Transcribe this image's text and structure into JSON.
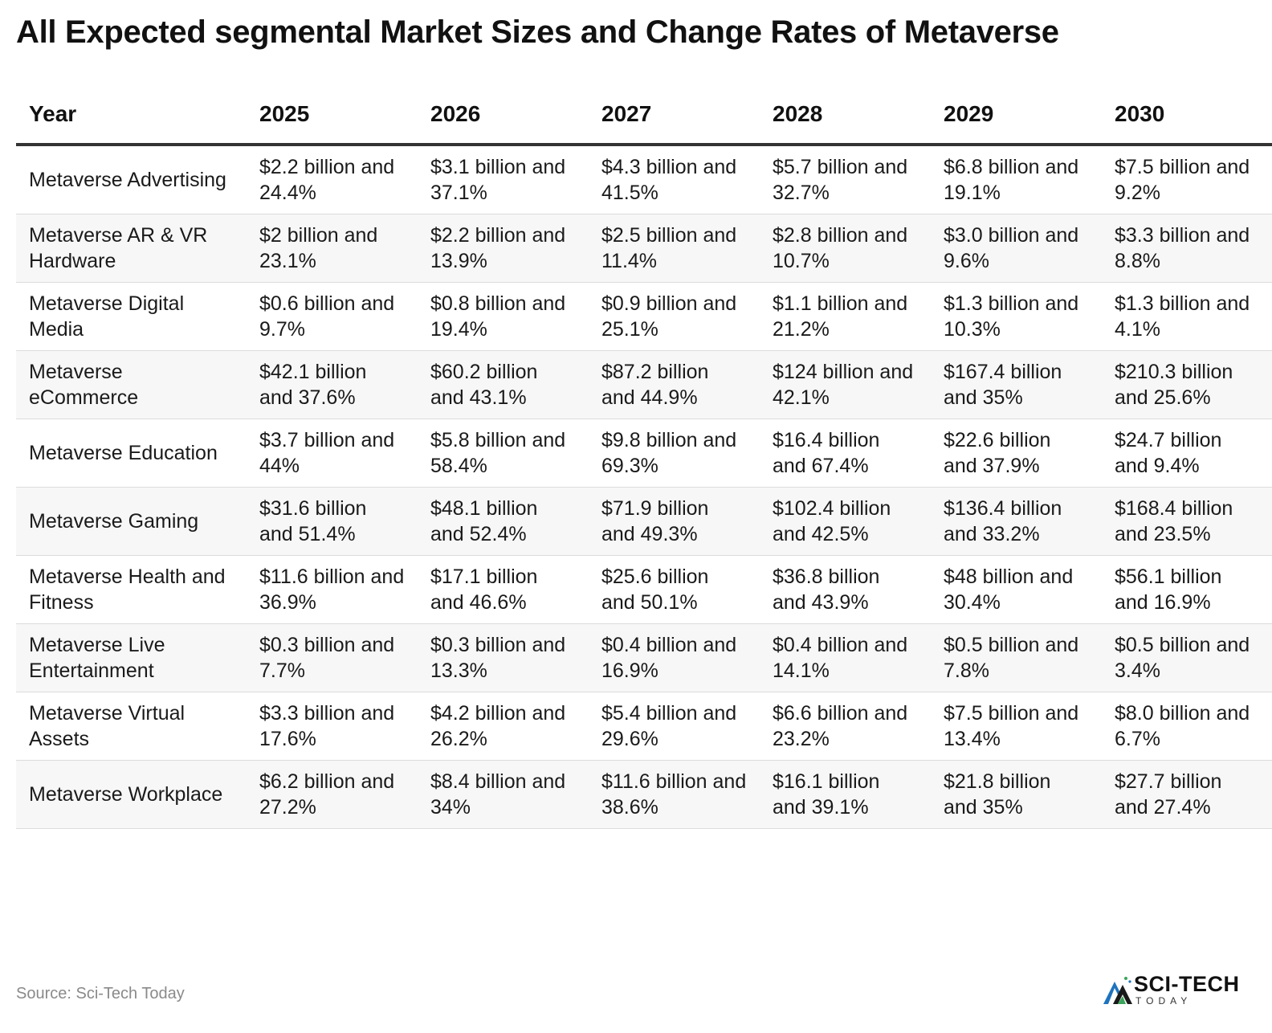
{
  "title": "All Expected segmental Market Sizes and Change Rates of Metaverse",
  "table": {
    "headers": [
      "Year",
      "2025",
      "2026",
      "2027",
      "2028",
      "2029",
      "2030"
    ],
    "rows": [
      [
        "Metaverse Advertising",
        "$2.2 billion and 24.4%",
        "$3.1 billion and 37.1%",
        "$4.3 billion and 41.5%",
        "$5.7 billion and 32.7%",
        "$6.8 billion and 19.1%",
        "$7.5 billion and 9.2%"
      ],
      [
        "Metaverse AR & VR Hardware",
        "$2 billion and 23.1%",
        "$2.2 billion and 13.9%",
        "$2.5 billion and 11.4%",
        "$2.8 billion and 10.7%",
        "$3.0 billion and 9.6%",
        "$3.3 billion and 8.8%"
      ],
      [
        "Metaverse Digital Media",
        "$0.6 billion and 9.7%",
        "$0.8 billion and 19.4%",
        "$0.9 billion and 25.1%",
        "$1.1 billion and 21.2%",
        "$1.3 billion and 10.3%",
        "$1.3 billion and 4.1%"
      ],
      [
        "Metaverse eCommerce",
        "$42.1 billion and 37.6%",
        "$60.2 billion and 43.1%",
        "$87.2 billion and 44.9%",
        "$124 billion and 42.1%",
        "$167.4 billion and 35%",
        "$210.3 billion and 25.6%"
      ],
      [
        "Metaverse Education",
        "$3.7 billion and 44%",
        "$5.8 billion and 58.4%",
        "$9.8 billion and 69.3%",
        "$16.4 billion and 67.4%",
        "$22.6 billion and 37.9%",
        "$24.7 billion and 9.4%"
      ],
      [
        "Metaverse Gaming",
        "$31.6 billion and 51.4%",
        "$48.1 billion and 52.4%",
        "$71.9 billion and 49.3%",
        "$102.4 billion and 42.5%",
        "$136.4 billion and 33.2%",
        "$168.4 billion and 23.5%"
      ],
      [
        "Metaverse Health and Fitness",
        "$11.6 billion and 36.9%",
        "$17.1 billion and 46.6%",
        "$25.6 billion and 50.1%",
        "$36.8 billion and 43.9%",
        "$48 billion and 30.4%",
        "$56.1 billion and 16.9%"
      ],
      [
        "Metaverse Live Entertainment",
        "$0.3 billion and 7.7%",
        "$0.3 billion and 13.3%",
        "$0.4 billion and 16.9%",
        "$0.4 billion and 14.1%",
        "$0.5 billion and 7.8%",
        "$0.5 billion and 3.4%"
      ],
      [
        "Metaverse Virtual Assets",
        "$3.3 billion and 17.6%",
        "$4.2 billion and 26.2%",
        "$5.4 billion and 29.6%",
        "$6.6 billion and 23.2%",
        "$7.5 billion and 13.4%",
        "$8.0 billion and 6.7%"
      ],
      [
        "Metaverse Workplace",
        "$6.2 billion and 27.2%",
        "$8.4 billion and 34%",
        "$11.6 billion and 38.6%",
        "$16.1 billion and 39.1%",
        "$21.8 billion and 35%",
        "$27.7 billion and 27.4%"
      ]
    ]
  },
  "footer": {
    "source": "Source: Sci-Tech Today",
    "logo_main": "SCI-TECH",
    "logo_sub": "TODAY"
  },
  "colors": {
    "logo_blue": "#1e73be",
    "logo_green": "#3aa55a",
    "logo_dark": "#1a1a1a"
  }
}
